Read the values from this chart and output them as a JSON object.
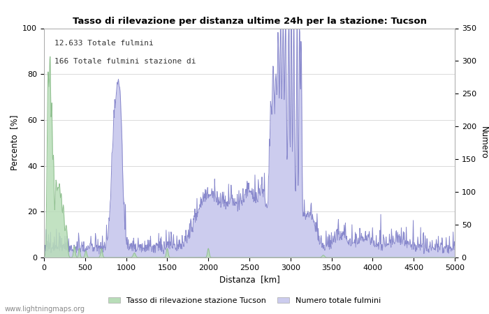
{
  "title": "Tasso di rilevazione per distanza ultime 24h per la stazione: Tucson",
  "xlabel": "Distanza  [km]",
  "ylabel_left": "Percento  [%]",
  "ylabel_right": "Numero",
  "annotation_line1": "12.633 Totale fulmini",
  "annotation_line2": "166 Totale fulmini stazione di",
  "legend_green": "Tasso di rilevazione stazione Tucson",
  "legend_blue": "Numero totale fulmini",
  "watermark": "www.lightningmaps.org",
  "xlim": [
    0,
    5000
  ],
  "ylim_left": [
    0,
    100
  ],
  "ylim_right": [
    0,
    350
  ],
  "xticks": [
    0,
    500,
    1000,
    1500,
    2000,
    2500,
    3000,
    3500,
    4000,
    4500,
    5000
  ],
  "yticks_left": [
    0,
    20,
    40,
    60,
    80,
    100
  ],
  "yticks_right": [
    0,
    50,
    100,
    150,
    200,
    250,
    300,
    350
  ],
  "color_green_fill": "#b8ddb8",
  "color_green_line": "#90c090",
  "color_blue_fill": "#ccccee",
  "color_blue_line": "#8888cc",
  "bg_color": "#ffffff",
  "grid_color": "#cccccc"
}
